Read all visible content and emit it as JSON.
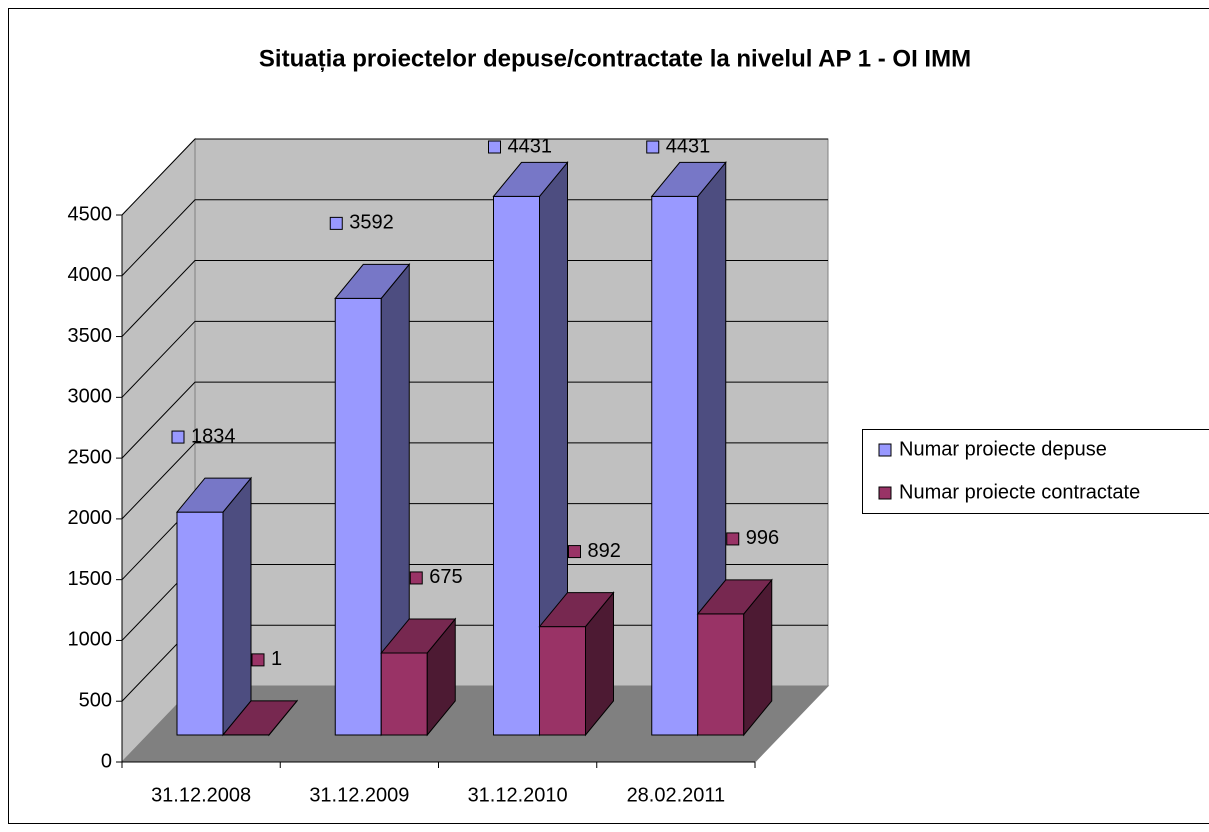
{
  "chart_data": {
    "type": "bar3d",
    "title": "Situația proiectelor depuse/contractate la nivelul AP 1 - OI IMM",
    "categories": [
      "31.12.2008",
      "31.12.2009",
      "31.12.2010",
      "28.02.2011"
    ],
    "series": [
      {
        "name": "Numar proiecte depuse",
        "color": "#9999ff",
        "values": [
          1834,
          3592,
          4431,
          4431
        ]
      },
      {
        "name": "Numar proiecte contractate",
        "color": "#993366",
        "values": [
          1,
          675,
          892,
          996
        ]
      }
    ],
    "ylim": [
      0,
      4500
    ],
    "yticks": [
      0,
      500,
      1000,
      1500,
      2000,
      2500,
      3000,
      3500,
      4000,
      4500
    ],
    "grid": true,
    "legend": "right"
  }
}
